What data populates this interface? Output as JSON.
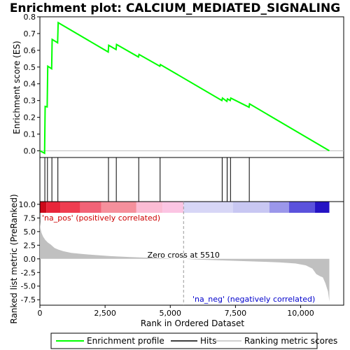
{
  "chart_data": {
    "type": "line",
    "title": "Enrichment plot: CALCIUM_MEDIATED_SIGNALING",
    "es_panel": {
      "ylabel": "Enrichment score (ES)",
      "ylim": [
        -0.04,
        0.8
      ],
      "yticks": [
        "0.0",
        "0.1",
        "0.2",
        "0.3",
        "0.4",
        "0.5",
        "0.6",
        "0.7",
        "0.8"
      ],
      "ytick_values": [
        0.0,
        0.1,
        0.2,
        0.3,
        0.4,
        0.5,
        0.6,
        0.7,
        0.8
      ],
      "series": [
        {
          "name": "Enrichment profile",
          "color": "#00ff00",
          "x": [
            0,
            180,
            200,
            280,
            300,
            450,
            470,
            680,
            700,
            2620,
            2640,
            2920,
            2940,
            3780,
            3800,
            4600,
            4620,
            6980,
            7000,
            7170,
            7190,
            7300,
            7320,
            8020,
            8040,
            11100
          ],
          "y": [
            0.0,
            -0.015,
            0.265,
            0.262,
            0.505,
            0.49,
            0.665,
            0.645,
            0.765,
            0.59,
            0.63,
            0.605,
            0.635,
            0.56,
            0.575,
            0.505,
            0.515,
            0.3,
            0.315,
            0.295,
            0.31,
            0.3,
            0.315,
            0.26,
            0.28,
            0.0
          ]
        }
      ]
    },
    "hits": {
      "name": "Hits",
      "color": "#000000",
      "x": [
        190,
        290,
        460,
        690,
        2630,
        2930,
        3790,
        4610,
        6990,
        7180,
        7310,
        8030
      ]
    },
    "heat_bar": {
      "label": "10.0",
      "segments": [
        {
          "x0": 0,
          "x1": 250,
          "color": "#cc0a1a"
        },
        {
          "x0": 250,
          "x1": 800,
          "color": "#e8253a"
        },
        {
          "x0": 800,
          "x1": 1550,
          "color": "#ef3d50"
        },
        {
          "x0": 1550,
          "x1": 2350,
          "color": "#f26377"
        },
        {
          "x0": 2350,
          "x1": 3700,
          "color": "#f5909c"
        },
        {
          "x0": 3700,
          "x1": 4700,
          "color": "#fbbcd4"
        },
        {
          "x0": 4700,
          "x1": 5510,
          "color": "#fbc5e3"
        },
        {
          "x0": 5510,
          "x1": 7400,
          "color": "#d7d6f6"
        },
        {
          "x0": 7400,
          "x1": 8800,
          "color": "#c8c7f2"
        },
        {
          "x0": 8800,
          "x1": 9550,
          "color": "#9b97ea"
        },
        {
          "x0": 9550,
          "x1": 10550,
          "color": "#5b52dc"
        },
        {
          "x0": 10550,
          "x1": 11100,
          "color": "#2514c4"
        }
      ]
    },
    "metric_panel": {
      "ylabel": "Ranked list metric (PreRanked)",
      "ylim": [
        -8.5,
        10.5
      ],
      "yticks": [
        "10.0",
        "7.5",
        "5.0",
        "2.5",
        "0.0",
        "-2.5",
        "-5.0",
        "-7.5"
      ],
      "ytick_values": [
        10.0,
        7.5,
        5.0,
        2.5,
        0.0,
        -2.5,
        -5.0,
        -7.5
      ],
      "color": "#c0c0c0",
      "x": [
        0,
        20,
        60,
        120,
        200,
        300,
        420,
        560,
        700,
        900,
        1200,
        1600,
        2100,
        2700,
        3400,
        4200,
        5000,
        5510,
        6000,
        6800,
        7600,
        8400,
        9200,
        9800,
        10200,
        10450,
        10600,
        10750,
        10850,
        10950,
        11050,
        11100
      ],
      "y": [
        6.8,
        5.6,
        4.8,
        4.1,
        3.5,
        3.0,
        2.6,
        2.0,
        1.7,
        1.4,
        1.1,
        0.9,
        0.7,
        0.5,
        0.35,
        0.2,
        0.05,
        0.0,
        -0.12,
        -0.25,
        -0.38,
        -0.5,
        -0.65,
        -0.85,
        -1.2,
        -1.8,
        -2.8,
        -3.2,
        -3.4,
        -4.5,
        -6.0,
        -7.8
      ]
    },
    "annotations": {
      "pos_label": "'na_pos' (positively correlated)",
      "neg_label": "'na_neg' (negatively correlated)",
      "zero_cross": "Zero cross at 5510",
      "zero_cross_x": 5510
    },
    "x_axis": {
      "xlabel": "Rank in Ordered Dataset",
      "xlim": [
        0,
        11650
      ],
      "xticks": [
        "0",
        "2,500",
        "5,000",
        "7,500",
        "10,000"
      ],
      "xtick_values": [
        0,
        2500,
        5000,
        7500,
        10000
      ]
    },
    "legend": {
      "placement": "bottom",
      "items": [
        {
          "label": "Enrichment profile",
          "color": "#00ff00"
        },
        {
          "label": "Hits",
          "color": "#000000"
        },
        {
          "label": "Ranking metric scores",
          "color": "#c0c0c0"
        }
      ]
    }
  }
}
